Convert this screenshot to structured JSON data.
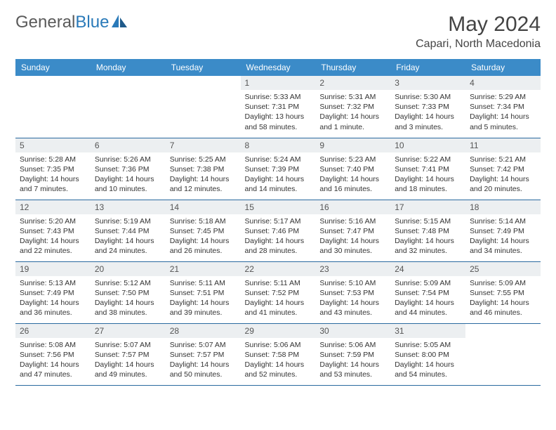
{
  "brand": {
    "name_a": "General",
    "name_b": "Blue"
  },
  "title": "May 2024",
  "location": "Capari, North Macedonia",
  "colors": {
    "header_bg": "#3b8bc8",
    "header_text": "#ffffff",
    "daynum_bg": "#eceff1",
    "border": "#2a6aa0",
    "brand_gray": "#5a5a5a",
    "brand_blue": "#2a7ab9"
  },
  "weekdays": [
    "Sunday",
    "Monday",
    "Tuesday",
    "Wednesday",
    "Thursday",
    "Friday",
    "Saturday"
  ],
  "weeks": [
    [
      null,
      null,
      null,
      {
        "n": "1",
        "sunrise": "5:33 AM",
        "sunset": "7:31 PM",
        "daylight": "13 hours and 58 minutes."
      },
      {
        "n": "2",
        "sunrise": "5:31 AM",
        "sunset": "7:32 PM",
        "daylight": "14 hours and 1 minute."
      },
      {
        "n": "3",
        "sunrise": "5:30 AM",
        "sunset": "7:33 PM",
        "daylight": "14 hours and 3 minutes."
      },
      {
        "n": "4",
        "sunrise": "5:29 AM",
        "sunset": "7:34 PM",
        "daylight": "14 hours and 5 minutes."
      }
    ],
    [
      {
        "n": "5",
        "sunrise": "5:28 AM",
        "sunset": "7:35 PM",
        "daylight": "14 hours and 7 minutes."
      },
      {
        "n": "6",
        "sunrise": "5:26 AM",
        "sunset": "7:36 PM",
        "daylight": "14 hours and 10 minutes."
      },
      {
        "n": "7",
        "sunrise": "5:25 AM",
        "sunset": "7:38 PM",
        "daylight": "14 hours and 12 minutes."
      },
      {
        "n": "8",
        "sunrise": "5:24 AM",
        "sunset": "7:39 PM",
        "daylight": "14 hours and 14 minutes."
      },
      {
        "n": "9",
        "sunrise": "5:23 AM",
        "sunset": "7:40 PM",
        "daylight": "14 hours and 16 minutes."
      },
      {
        "n": "10",
        "sunrise": "5:22 AM",
        "sunset": "7:41 PM",
        "daylight": "14 hours and 18 minutes."
      },
      {
        "n": "11",
        "sunrise": "5:21 AM",
        "sunset": "7:42 PM",
        "daylight": "14 hours and 20 minutes."
      }
    ],
    [
      {
        "n": "12",
        "sunrise": "5:20 AM",
        "sunset": "7:43 PM",
        "daylight": "14 hours and 22 minutes."
      },
      {
        "n": "13",
        "sunrise": "5:19 AM",
        "sunset": "7:44 PM",
        "daylight": "14 hours and 24 minutes."
      },
      {
        "n": "14",
        "sunrise": "5:18 AM",
        "sunset": "7:45 PM",
        "daylight": "14 hours and 26 minutes."
      },
      {
        "n": "15",
        "sunrise": "5:17 AM",
        "sunset": "7:46 PM",
        "daylight": "14 hours and 28 minutes."
      },
      {
        "n": "16",
        "sunrise": "5:16 AM",
        "sunset": "7:47 PM",
        "daylight": "14 hours and 30 minutes."
      },
      {
        "n": "17",
        "sunrise": "5:15 AM",
        "sunset": "7:48 PM",
        "daylight": "14 hours and 32 minutes."
      },
      {
        "n": "18",
        "sunrise": "5:14 AM",
        "sunset": "7:49 PM",
        "daylight": "14 hours and 34 minutes."
      }
    ],
    [
      {
        "n": "19",
        "sunrise": "5:13 AM",
        "sunset": "7:49 PM",
        "daylight": "14 hours and 36 minutes."
      },
      {
        "n": "20",
        "sunrise": "5:12 AM",
        "sunset": "7:50 PM",
        "daylight": "14 hours and 38 minutes."
      },
      {
        "n": "21",
        "sunrise": "5:11 AM",
        "sunset": "7:51 PM",
        "daylight": "14 hours and 39 minutes."
      },
      {
        "n": "22",
        "sunrise": "5:11 AM",
        "sunset": "7:52 PM",
        "daylight": "14 hours and 41 minutes."
      },
      {
        "n": "23",
        "sunrise": "5:10 AM",
        "sunset": "7:53 PM",
        "daylight": "14 hours and 43 minutes."
      },
      {
        "n": "24",
        "sunrise": "5:09 AM",
        "sunset": "7:54 PM",
        "daylight": "14 hours and 44 minutes."
      },
      {
        "n": "25",
        "sunrise": "5:09 AM",
        "sunset": "7:55 PM",
        "daylight": "14 hours and 46 minutes."
      }
    ],
    [
      {
        "n": "26",
        "sunrise": "5:08 AM",
        "sunset": "7:56 PM",
        "daylight": "14 hours and 47 minutes."
      },
      {
        "n": "27",
        "sunrise": "5:07 AM",
        "sunset": "7:57 PM",
        "daylight": "14 hours and 49 minutes."
      },
      {
        "n": "28",
        "sunrise": "5:07 AM",
        "sunset": "7:57 PM",
        "daylight": "14 hours and 50 minutes."
      },
      {
        "n": "29",
        "sunrise": "5:06 AM",
        "sunset": "7:58 PM",
        "daylight": "14 hours and 52 minutes."
      },
      {
        "n": "30",
        "sunrise": "5:06 AM",
        "sunset": "7:59 PM",
        "daylight": "14 hours and 53 minutes."
      },
      {
        "n": "31",
        "sunrise": "5:05 AM",
        "sunset": "8:00 PM",
        "daylight": "14 hours and 54 minutes."
      },
      null
    ]
  ],
  "labels": {
    "sunrise": "Sunrise:",
    "sunset": "Sunset:",
    "daylight": "Daylight:"
  }
}
